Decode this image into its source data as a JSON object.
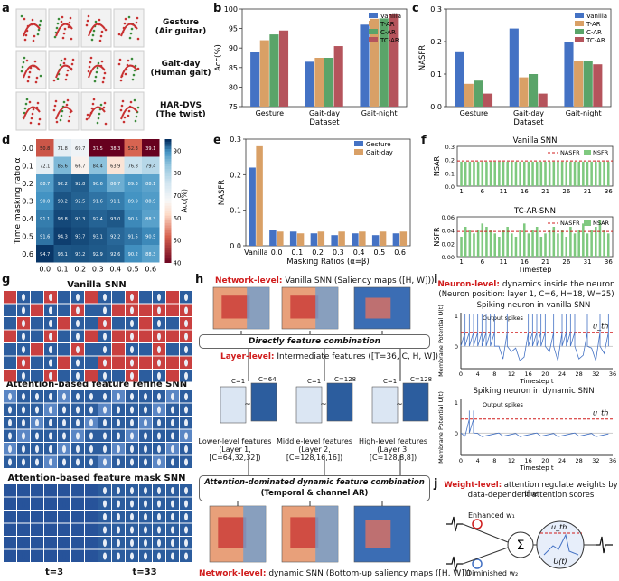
{
  "panels": {
    "a": "a",
    "b": "b",
    "c": "c",
    "d": "d",
    "e": "e",
    "f": "f",
    "g": "g",
    "h": "h",
    "i": "i",
    "j": "j"
  },
  "panel_a": {
    "rows": [
      {
        "line1": "Gesture",
        "line2": "(Air guitar)"
      },
      {
        "line1": "Gait-day",
        "line2": "(Human gait)"
      },
      {
        "line1": "HAR-DVS",
        "line2": "(The twist)"
      }
    ]
  },
  "colors": {
    "vanilla": "#4472c4",
    "tar": "#d9a066",
    "car": "#5aa469",
    "tcar": "#b5545c"
  },
  "chart_data": [
    {
      "id": "b",
      "type": "bar",
      "categories": [
        "Gesture",
        "Gait-day",
        "Gait-night"
      ],
      "series": [
        {
          "name": "Vanilla",
          "values": [
            89.0,
            86.5,
            96.0
          ]
        },
        {
          "name": "T-AR",
          "values": [
            92.0,
            87.5,
            97.5
          ]
        },
        {
          "name": "C-AR",
          "values": [
            93.5,
            87.5,
            97.6
          ]
        },
        {
          "name": "TC-AR",
          "values": [
            94.5,
            90.5,
            98.8
          ]
        }
      ],
      "xlabel": "Dataset",
      "ylabel": "Acc(%)",
      "ylim": [
        75,
        100
      ],
      "yticks": [
        "75",
        "80",
        "85",
        "90",
        "95",
        "100"
      ]
    },
    {
      "id": "c",
      "type": "bar",
      "categories": [
        "Gesture",
        "Gait-day",
        "Gait-night"
      ],
      "series": [
        {
          "name": "Vanilla",
          "values": [
            0.17,
            0.24,
            0.2
          ]
        },
        {
          "name": "T-AR",
          "values": [
            0.07,
            0.09,
            0.14
          ]
        },
        {
          "name": "C-AR",
          "values": [
            0.08,
            0.1,
            0.14
          ]
        },
        {
          "name": "TC-AR",
          "values": [
            0.04,
            0.04,
            0.13
          ]
        }
      ],
      "xlabel": "Dataset",
      "ylabel": "NASFR",
      "ylim": [
        0,
        0.3
      ],
      "yticks": [
        "0.0",
        "0.1",
        "0.2",
        "0.3"
      ]
    },
    {
      "id": "d",
      "type": "heatmap",
      "rows": [
        "0.0",
        "0.1",
        "0.2",
        "0.3",
        "0.4",
        "0.5",
        "0.6"
      ],
      "cols": [
        "0.0",
        "0.1",
        "0.2",
        "0.3",
        "0.4",
        "0.5",
        "0.6"
      ],
      "values": [
        [
          50.8,
          71.8,
          69.7,
          37.5,
          38.3,
          52.3,
          39.1
        ],
        [
          72.1,
          85.6,
          66.7,
          84.4,
          63.9,
          76.8,
          79.4
        ],
        [
          88.7,
          92.2,
          92.8,
          90.6,
          86.7,
          89.3,
          88.1
        ],
        [
          90.0,
          93.2,
          92.5,
          91.6,
          91.1,
          89.9,
          88.9
        ],
        [
          91.1,
          93.8,
          93.3,
          92.4,
          93.0,
          90.5,
          88.3
        ],
        [
          91.6,
          94.3,
          93.7,
          93.1,
          92.2,
          91.5,
          90.5
        ],
        [
          94.7,
          93.1,
          93.2,
          92.9,
          92.6,
          90.2,
          88.3
        ]
      ],
      "xlabel": "Channel masking ratio β",
      "ylabel": "Time masking ratio α",
      "colorbar_label": "Acc(%)",
      "colorbar_ticks": [
        "40",
        "50",
        "60",
        "70",
        "80",
        "90"
      ]
    },
    {
      "id": "e",
      "type": "bar",
      "categories": [
        "Vanilla",
        "0.0",
        "0.1",
        "0.2",
        "0.3",
        "0.4",
        "0.5",
        "0.6"
      ],
      "series": [
        {
          "name": "Gesture",
          "values": [
            0.22,
            0.045,
            0.04,
            0.035,
            0.03,
            0.035,
            0.03,
            0.035
          ]
        },
        {
          "name": "Gait-day",
          "values": [
            0.28,
            0.04,
            0.035,
            0.04,
            0.04,
            0.04,
            0.04,
            0.04
          ]
        }
      ],
      "xlabel": "Masking Ratios (α=β)",
      "ylabel": "NASFR",
      "ylim": [
        0,
        0.3
      ],
      "yticks": [
        "0.0",
        "0.1",
        "0.2",
        "0.3"
      ]
    },
    {
      "id": "f1",
      "type": "bar",
      "title": "Vanilla SNN",
      "x_ticks": [
        "1",
        "6",
        "11",
        "16",
        "21",
        "26",
        "31",
        "36"
      ],
      "bar_value": 0.185,
      "nasfr_line": 0.19,
      "legend": [
        "NASFR",
        "NSFR"
      ],
      "ylabel": "NSAR",
      "ylim": [
        0,
        0.3
      ],
      "yticks": [
        "0.0",
        "0.1",
        "0.2",
        "0.3"
      ]
    },
    {
      "id": "f2",
      "type": "bar",
      "title": "TC-AR-SNN",
      "x_ticks": [
        "1",
        "6",
        "11",
        "16",
        "21",
        "26",
        "31",
        "36"
      ],
      "values": [
        0.03,
        0.045,
        0.04,
        0.035,
        0.04,
        0.05,
        0.045,
        0.04,
        0.035,
        0.03,
        0.04,
        0.045,
        0.035,
        0.03,
        0.04,
        0.05,
        0.035,
        0.04,
        0.045,
        0.03,
        0.035,
        0.04,
        0.045,
        0.035,
        0.04,
        0.03,
        0.045,
        0.035,
        0.04,
        0.05,
        0.035,
        0.04,
        0.045,
        0.055,
        0.04,
        0.035
      ],
      "nasfr_line": 0.038,
      "legend": [
        "NASFR",
        "NSAR"
      ],
      "xlabel": "Timestep",
      "ylabel": "NSFR",
      "ylim": [
        0,
        0.06
      ],
      "yticks": [
        "0.00",
        "0.02",
        "0.04",
        "0.06"
      ]
    }
  ],
  "panel_g": {
    "titles": [
      "Vanilla SNN",
      "Attention-based feature refine SNN",
      "Attention-based feature mask SNN"
    ],
    "t_labels": [
      "t=3",
      "t=33"
    ]
  },
  "panel_h": {
    "net_top_prefix": "Network-level:",
    "net_top_rest": " Vanilla SNN (Saliency maps ([H, W]))",
    "box1": "Directly feature combination",
    "layer_prefix": "Layer-level:",
    "layer_rest": " Intermediate features ([T=36, C, H, W])",
    "low": {
      "line1": "Lower-level features",
      "line2": "(Layer 1, [C=64,32,32])",
      "c1": "C=1",
      "c2": "C=64"
    },
    "mid": {
      "line1": "Middle-level features",
      "line2": "(Layer 2, [C=128,16,16])",
      "c1": "C=1",
      "c2": "C=128"
    },
    "high": {
      "line1": "High-level features",
      "line2": "(Layer 3, [C=128,8,8])",
      "c1": "C=1",
      "c2": "C=128"
    },
    "box2_line1": "Attention-dominated dynamic feature combination",
    "box2_line2": "(Temporal & channel AR)",
    "net_bot_prefix": "Network-level:",
    "net_bot_rest": " dynamic SNN (Bottom-up saliency maps ([H, W]))"
  },
  "panel_i": {
    "title_prefix": "Neuron-level:",
    "title_rest": " dynamics inside the neuron",
    "subtitle": "(Neuron position: layer 1, C=6, H=18, W=25)",
    "top": {
      "title": "Spiking neuron in vanilla SNN",
      "ylabel": "Membrane Potential U(t)",
      "xlabel": "Timestep t",
      "annot": "Output spikes",
      "uth": "u_th",
      "xticks": [
        "0",
        "4",
        "8",
        "12",
        "16",
        "20",
        "24",
        "28",
        "32",
        "36"
      ],
      "yticks": [
        "0",
        "1"
      ]
    },
    "bot": {
      "title": "Spiking neuron in dynamic SNN",
      "ylabel": "Membrane Potential U(t)",
      "xlabel": "Timestep t",
      "annot": "Output spikes",
      "uth": "u_th",
      "xticks": [
        "0",
        "4",
        "8",
        "12",
        "16",
        "20",
        "24",
        "28",
        "32",
        "36"
      ],
      "yticks": [
        "0",
        "1"
      ]
    }
  },
  "panel_j": {
    "title_prefix": "Weight-level:",
    "title_rest": " attention regulate weights by the",
    "title_line2": "data-dependent attention scores",
    "enhanced": "Enhanced w₁",
    "diminished": "Diminished w₂",
    "uth": "u_th",
    "ut": "U(t)",
    "sigma": "Σ"
  }
}
